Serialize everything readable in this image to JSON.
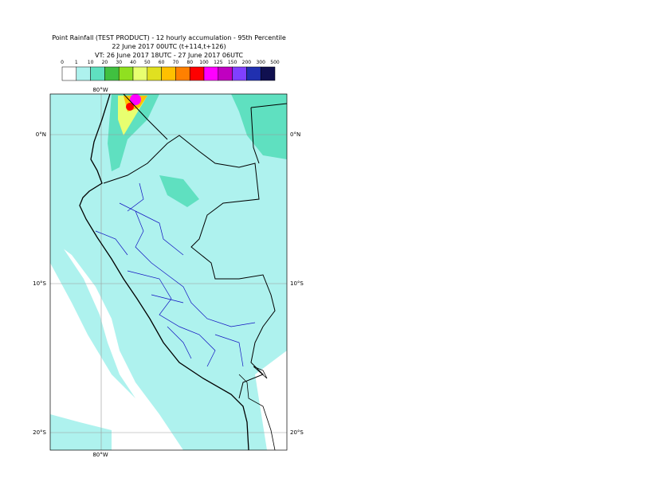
{
  "header": {
    "title": "Point Rainfall (TEST PRODUCT) - 12 hourly accumulation - 95th Percentile",
    "run": "22 June 2017 00UTC (t+114,t+126)",
    "validity": "VT: 26 June 2017 18UTC - 27 June 2017 06UTC"
  },
  "legend": {
    "labels": [
      "0",
      "1",
      "10",
      "20",
      "30",
      "40",
      "50",
      "60",
      "70",
      "80",
      "100",
      "125",
      "150",
      "200",
      "300",
      "500"
    ],
    "colors": [
      "#ffffff",
      "#aef2ee",
      "#5fe0c0",
      "#40c040",
      "#90e020",
      "#e8ff70",
      "#e0e020",
      "#ffc000",
      "#ff8000",
      "#ff0000",
      "#ff00ff",
      "#c000c0",
      "#8040ff",
      "#2030b0",
      "#101050"
    ]
  },
  "map": {
    "lon_labels": [
      "80°W"
    ],
    "lat_labels": [
      "0°N",
      "10°S",
      "20°S"
    ]
  }
}
